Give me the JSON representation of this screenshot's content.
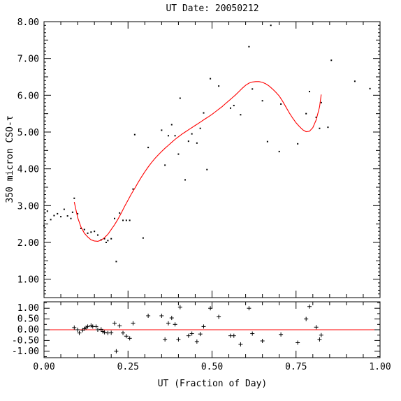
{
  "chart_data": [
    {
      "type": "scatter",
      "title": "UT Date: 20050212",
      "ylabel": "350 micron CSO-τ",
      "xlim": [
        0.0,
        1.0
      ],
      "ylim": [
        0.5,
        8.0
      ],
      "y_ticks": [
        "1.00",
        "2.00",
        "3.00",
        "4.00",
        "5.00",
        "6.00",
        "7.00",
        "8.00"
      ],
      "series": [
        {
          "points": [
            [
              0.0,
              2.45
            ],
            [
              0.01,
              2.85
            ],
            [
              0.02,
              2.62
            ],
            [
              0.03,
              2.73
            ],
            [
              0.04,
              2.78
            ],
            [
              0.05,
              2.7
            ],
            [
              0.06,
              2.9
            ],
            [
              0.07,
              2.72
            ],
            [
              0.08,
              2.65
            ],
            [
              0.085,
              2.82
            ],
            [
              0.09,
              3.2
            ],
            [
              0.1,
              2.78
            ],
            [
              0.11,
              2.38
            ],
            [
              0.12,
              2.35
            ],
            [
              0.13,
              2.25
            ],
            [
              0.14,
              2.28
            ],
            [
              0.15,
              2.3
            ],
            [
              0.16,
              2.2
            ],
            [
              0.17,
              2.07
            ],
            [
              0.18,
              2.1
            ],
            [
              0.185,
              2.0
            ],
            [
              0.19,
              2.05
            ],
            [
              0.2,
              2.1
            ],
            [
              0.21,
              2.65
            ],
            [
              0.215,
              1.48
            ],
            [
              0.225,
              2.8
            ],
            [
              0.235,
              2.6
            ],
            [
              0.245,
              2.6
            ],
            [
              0.255,
              2.6
            ],
            [
              0.265,
              3.45
            ],
            [
              0.27,
              4.93
            ],
            [
              0.295,
              2.12
            ],
            [
              0.31,
              4.58
            ],
            [
              0.35,
              5.05
            ],
            [
              0.36,
              4.1
            ],
            [
              0.37,
              4.9
            ],
            [
              0.38,
              5.2
            ],
            [
              0.39,
              4.9
            ],
            [
              0.4,
              4.4
            ],
            [
              0.405,
              5.92
            ],
            [
              0.42,
              3.7
            ],
            [
              0.43,
              4.75
            ],
            [
              0.44,
              4.95
            ],
            [
              0.455,
              4.7
            ],
            [
              0.465,
              5.1
            ],
            [
              0.475,
              5.52
            ],
            [
              0.485,
              3.98
            ],
            [
              0.495,
              6.45
            ],
            [
              0.52,
              6.25
            ],
            [
              0.555,
              5.65
            ],
            [
              0.565,
              5.72
            ],
            [
              0.585,
              5.47
            ],
            [
              0.61,
              7.32
            ],
            [
              0.62,
              6.17
            ],
            [
              0.65,
              5.85
            ],
            [
              0.665,
              4.74
            ],
            [
              0.675,
              7.9
            ],
            [
              0.7,
              4.47
            ],
            [
              0.705,
              5.76
            ],
            [
              0.755,
              4.68
            ],
            [
              0.78,
              5.5
            ],
            [
              0.79,
              6.1
            ],
            [
              0.81,
              5.4
            ],
            [
              0.82,
              5.1
            ],
            [
              0.825,
              5.8
            ],
            [
              0.845,
              5.13
            ],
            [
              0.855,
              6.95
            ],
            [
              0.925,
              6.38
            ],
            [
              0.97,
              6.18
            ]
          ]
        },
        {
          "fit": [
            [
              0.09,
              3.1
            ],
            [
              0.1,
              2.68
            ],
            [
              0.11,
              2.42
            ],
            [
              0.12,
              2.25
            ],
            [
              0.13,
              2.15
            ],
            [
              0.14,
              2.07
            ],
            [
              0.15,
              2.04
            ],
            [
              0.16,
              2.03
            ],
            [
              0.17,
              2.06
            ],
            [
              0.18,
              2.13
            ],
            [
              0.19,
              2.22
            ],
            [
              0.2,
              2.35
            ],
            [
              0.21,
              2.48
            ],
            [
              0.22,
              2.63
            ],
            [
              0.23,
              2.8
            ],
            [
              0.24,
              2.98
            ],
            [
              0.25,
              3.15
            ],
            [
              0.26,
              3.32
            ],
            [
              0.27,
              3.47
            ],
            [
              0.28,
              3.63
            ],
            [
              0.29,
              3.78
            ],
            [
              0.3,
              3.92
            ],
            [
              0.31,
              4.05
            ],
            [
              0.32,
              4.17
            ],
            [
              0.33,
              4.28
            ],
            [
              0.34,
              4.38
            ],
            [
              0.35,
              4.47
            ],
            [
              0.36,
              4.56
            ],
            [
              0.37,
              4.64
            ],
            [
              0.38,
              4.72
            ],
            [
              0.39,
              4.8
            ],
            [
              0.4,
              4.87
            ],
            [
              0.41,
              4.94
            ],
            [
              0.42,
              5.0
            ],
            [
              0.43,
              5.06
            ],
            [
              0.44,
              5.12
            ],
            [
              0.45,
              5.18
            ],
            [
              0.46,
              5.24
            ],
            [
              0.47,
              5.3
            ],
            [
              0.48,
              5.36
            ],
            [
              0.49,
              5.42
            ],
            [
              0.5,
              5.48
            ],
            [
              0.51,
              5.55
            ],
            [
              0.52,
              5.62
            ],
            [
              0.53,
              5.69
            ],
            [
              0.54,
              5.77
            ],
            [
              0.55,
              5.85
            ],
            [
              0.56,
              5.93
            ],
            [
              0.57,
              6.01
            ],
            [
              0.58,
              6.1
            ],
            [
              0.59,
              6.19
            ],
            [
              0.6,
              6.27
            ],
            [
              0.61,
              6.33
            ],
            [
              0.62,
              6.36
            ],
            [
              0.63,
              6.37
            ],
            [
              0.64,
              6.37
            ],
            [
              0.65,
              6.35
            ],
            [
              0.66,
              6.31
            ],
            [
              0.67,
              6.25
            ],
            [
              0.68,
              6.17
            ],
            [
              0.69,
              6.08
            ],
            [
              0.7,
              5.98
            ],
            [
              0.71,
              5.84
            ],
            [
              0.72,
              5.68
            ],
            [
              0.73,
              5.52
            ],
            [
              0.74,
              5.38
            ],
            [
              0.75,
              5.25
            ],
            [
              0.76,
              5.15
            ],
            [
              0.77,
              5.06
            ],
            [
              0.78,
              5.01
            ],
            [
              0.79,
              5.02
            ],
            [
              0.8,
              5.12
            ],
            [
              0.81,
              5.33
            ],
            [
              0.82,
              5.68
            ],
            [
              0.825,
              6.02
            ]
          ]
        }
      ]
    },
    {
      "type": "scatter",
      "xlabel": "UT (Fraction of Day)",
      "xlim": [
        0.0,
        1.0
      ],
      "ylim": [
        -1.3,
        1.3
      ],
      "x_ticks": [
        "0.00",
        "0.25",
        "0.50",
        "0.75",
        "1.00"
      ],
      "y_ticks": [
        "-1.00",
        "-0.50",
        "0.00",
        "0.50",
        "1.00"
      ],
      "series": [
        {
          "residuals": [
            [
              0.09,
              0.1
            ],
            [
              0.1,
              0.0
            ],
            [
              0.105,
              -0.15
            ],
            [
              0.115,
              -0.02
            ],
            [
              0.12,
              0.05
            ],
            [
              0.125,
              0.1
            ],
            [
              0.13,
              0.15
            ],
            [
              0.14,
              0.2
            ],
            [
              0.145,
              0.15
            ],
            [
              0.155,
              0.15
            ],
            [
              0.16,
              0.0
            ],
            [
              0.17,
              0.02
            ],
            [
              0.175,
              -0.08
            ],
            [
              0.18,
              -0.12
            ],
            [
              0.19,
              -0.15
            ],
            [
              0.2,
              -0.14
            ],
            [
              0.21,
              0.3
            ],
            [
              0.215,
              -1.0
            ],
            [
              0.225,
              0.18
            ],
            [
              0.235,
              -0.15
            ],
            [
              0.245,
              -0.3
            ],
            [
              0.255,
              -0.4
            ],
            [
              0.265,
              0.3
            ],
            [
              0.31,
              0.65
            ],
            [
              0.35,
              0.65
            ],
            [
              0.36,
              -0.45
            ],
            [
              0.37,
              0.3
            ],
            [
              0.38,
              0.55
            ],
            [
              0.39,
              0.25
            ],
            [
              0.4,
              -0.45
            ],
            [
              0.405,
              1.05
            ],
            [
              0.43,
              -0.28
            ],
            [
              0.44,
              -0.18
            ],
            [
              0.455,
              -0.55
            ],
            [
              0.465,
              -0.2
            ],
            [
              0.475,
              0.15
            ],
            [
              0.495,
              1.0
            ],
            [
              0.52,
              0.6
            ],
            [
              0.555,
              -0.28
            ],
            [
              0.565,
              -0.28
            ],
            [
              0.585,
              -0.68
            ],
            [
              0.61,
              1.0
            ],
            [
              0.62,
              -0.18
            ],
            [
              0.65,
              -0.52
            ],
            [
              0.705,
              -0.22
            ],
            [
              0.755,
              -0.6
            ],
            [
              0.78,
              0.5
            ],
            [
              0.79,
              1.08
            ],
            [
              0.81,
              0.12
            ],
            [
              0.82,
              -0.45
            ],
            [
              0.825,
              -0.25
            ]
          ]
        }
      ]
    }
  ]
}
